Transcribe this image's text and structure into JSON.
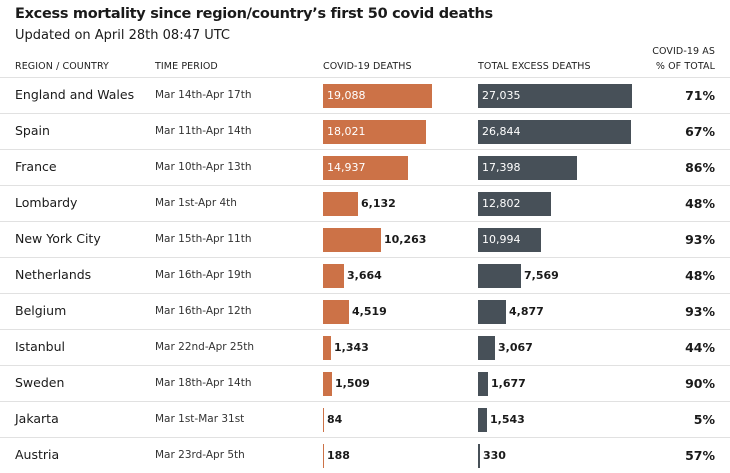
{
  "title": "Excess mortality since region/country’s first 50 covid deaths",
  "subtitle": "Updated on April 28th 08:47 UTC",
  "columns": {
    "region": "REGION / COUNTRY",
    "period": "TIME PERIOD",
    "covid": "COVID-19 DEATHS",
    "excess": "TOTAL EXCESS DEATHS",
    "pct_line1": "COVID-19 AS",
    "pct_line2": "% OF TOTAL"
  },
  "colors": {
    "covid_bar": "#cc7247",
    "excess_bar": "#475058"
  },
  "chart_data": {
    "type": "bar",
    "categories": [
      "England and Wales",
      "Spain",
      "France",
      "Lombardy",
      "New York City",
      "Netherlands",
      "Belgium",
      "Istanbul",
      "Sweden",
      "Jakarta",
      "Austria"
    ],
    "periods": [
      "Mar 14th-Apr 17th",
      "Mar 11th-Apr 14th",
      "Mar 10th-Apr 13th",
      "Mar 1st-Apr 4th",
      "Mar 15th-Apr 11th",
      "Mar 16th-Apr 19th",
      "Mar 16th-Apr 12th",
      "Mar 22nd-Apr 25th",
      "Mar 18th-Apr 14th",
      "Mar 1st-Mar 31st",
      "Mar 23rd-Apr 5th"
    ],
    "series": [
      {
        "name": "COVID-19 DEATHS",
        "values": [
          19088,
          18021,
          14937,
          6132,
          10263,
          3664,
          4519,
          1343,
          1509,
          84,
          188
        ]
      },
      {
        "name": "TOTAL EXCESS DEATHS",
        "values": [
          27035,
          26844,
          17398,
          12802,
          10994,
          7569,
          4877,
          3067,
          1677,
          1543,
          330
        ]
      }
    ],
    "percent_labels": [
      "71%",
      "67%",
      "86%",
      "48%",
      "93%",
      "48%",
      "93%",
      "44%",
      "90%",
      "5%",
      "57%"
    ],
    "title": "Excess mortality since region/country’s first 50 covid deaths",
    "subtitle": "Updated on April 28th 08:47 UTC"
  }
}
